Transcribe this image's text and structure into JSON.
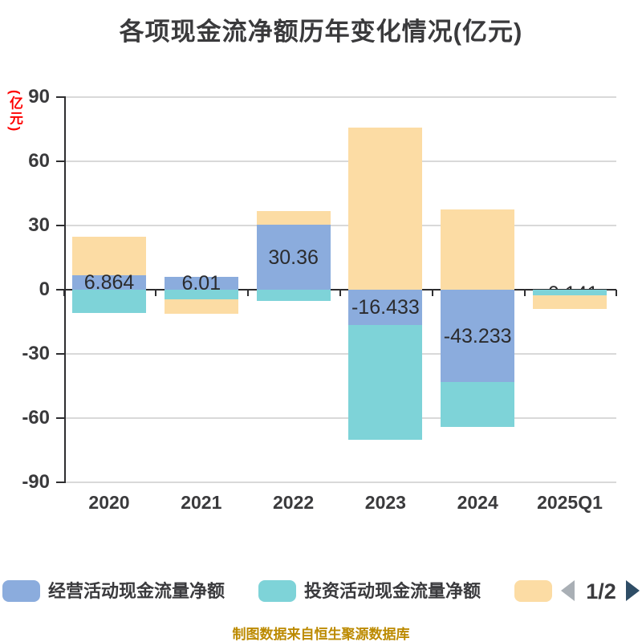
{
  "title": "各项现金流净额历年变化情况(亿元)",
  "y_axis": {
    "name": "(亿元)",
    "name_color": "#FE0000",
    "ticks": [
      "90",
      "60",
      "30",
      "0",
      "-30",
      "-60",
      "-90"
    ],
    "tick_values": [
      90,
      60,
      30,
      0,
      -30,
      -60,
      -90
    ]
  },
  "x_axis": {
    "categories": [
      "2020",
      "2021",
      "2022",
      "2023",
      "2024",
      "2025Q1"
    ]
  },
  "chart_data": {
    "type": "bar",
    "stacked": true,
    "unit": "亿元",
    "title": "各项现金流净额历年变化情况(亿元)",
    "categories": [
      "2020",
      "2021",
      "2022",
      "2023",
      "2024",
      "2025Q1"
    ],
    "ylim": [
      -90,
      90
    ],
    "y_interval": 30,
    "grid": true,
    "legend_position": "bottom",
    "series": [
      {
        "name": "经营活动现金流量净额",
        "color": "#8BACDD",
        "values": [
          6.864,
          6.01,
          30.36,
          -16.433,
          -43.233,
          -0.141
        ]
      },
      {
        "name": "投资活动现金流量净额",
        "color": "#7ED3D8",
        "values": [
          -10.9,
          -4.6,
          -5.3,
          -53.8,
          -20.8,
          -2.6
        ],
        "values_estimated": true
      },
      {
        "name": "",
        "name_visible": false,
        "color": "#FCDCA4",
        "values": [
          17.9,
          -6.6,
          6.5,
          75.8,
          37.6,
          -6.4
        ],
        "values_estimated": true
      }
    ],
    "data_labels": [
      "6.864",
      "6.01",
      "30.36",
      "-16.433",
      "-43.233",
      "-0.141"
    ],
    "data_label_series": "经营活动现金流量净额",
    "data_label_occluded": [
      false,
      false,
      false,
      false,
      false,
      true
    ]
  },
  "legend": {
    "items": [
      {
        "label": "经营活动现金流量净额",
        "color": "#8BACDD"
      },
      {
        "label": "投资活动现金流量净额",
        "color": "#7ED3D8"
      },
      {
        "label": "",
        "color": "#FCDCA4"
      }
    ],
    "pagination": {
      "current": "1/2"
    }
  },
  "footer": "制图数据来自恒生聚源数据库",
  "colors": {
    "series_blue": "#8BACDD",
    "series_teal": "#7ED3D8",
    "series_orange": "#FCDCA4",
    "text_dark": "#3A3A3C",
    "gridline": "#D9D9D9",
    "axis": "#2E2E30",
    "y_name_red": "#FE0000",
    "footer_gold": "#BC8A00",
    "pager_prev_gray": "#A9AFB5",
    "pager_next_slate": "#2E4D66"
  }
}
